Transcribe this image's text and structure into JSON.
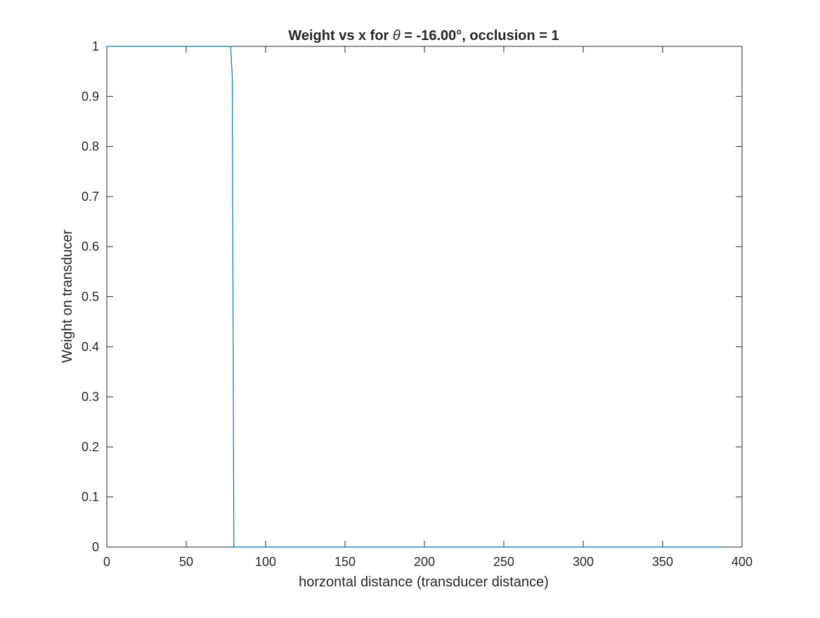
{
  "chart_data": {
    "type": "line",
    "title": {
      "prefix": "Weight vs x for ",
      "symbol": "θ",
      "suffix": " = -16.00°, occlusion =  1"
    },
    "xlabel": "horzontal distance (transducer distance)",
    "ylabel": "Weight on transducer",
    "xlim": [
      0,
      400
    ],
    "ylim": [
      0,
      1
    ],
    "xticks": [
      0,
      50,
      100,
      150,
      200,
      250,
      300,
      350,
      400
    ],
    "yticks": [
      0,
      0.1,
      0.2,
      0.3,
      0.4,
      0.5,
      0.6,
      0.7,
      0.8,
      0.9,
      1
    ],
    "grid": false,
    "box": true,
    "series": [
      {
        "color": "#0072BD",
        "x": [
          0,
          10,
          20,
          30,
          40,
          50,
          60,
          70,
          78,
          79,
          80,
          90,
          100,
          150,
          200,
          250,
          300,
          350,
          387
        ],
        "y": [
          1,
          1,
          1,
          1,
          1,
          1,
          1,
          1,
          1,
          0.94,
          0,
          0,
          0,
          0,
          0,
          0,
          0,
          0,
          0
        ]
      }
    ]
  }
}
